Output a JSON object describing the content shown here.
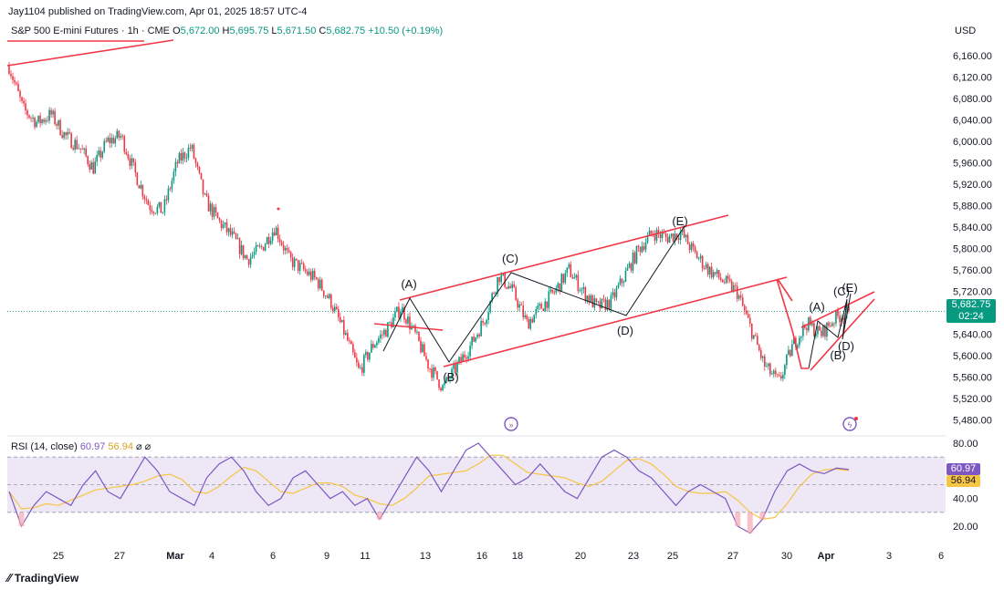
{
  "header": {
    "publisher_line": "Jay1104 published on TradingView.com, Apr 01, 2025 18:57 UTC-4"
  },
  "legend": {
    "symbol": "S&P 500 E-mini Futures · 1h · CME",
    "open_label": "O",
    "open": "5,672.00",
    "high_label": "H",
    "high": "5,695.75",
    "low_label": "L",
    "low": "5,671.50",
    "close_label": "C",
    "close": "5,682.75",
    "change": "+10.50 (+0.19%)"
  },
  "price_axis": {
    "currency": "USD",
    "ticks": [
      "6,160.00",
      "6,120.00",
      "6,080.00",
      "6,040.00",
      "6,000.00",
      "5,960.00",
      "5,920.00",
      "5,880.00",
      "5,840.00",
      "5,800.00",
      "5,760.00",
      "5,720.00",
      "5,640.00",
      "5,600.00",
      "5,560.00",
      "5,520.00",
      "5,480.00"
    ]
  },
  "last_price": {
    "value": "5,682.75",
    "countdown": "02:24"
  },
  "rsi": {
    "legend": "RSI (14, close)",
    "rsi_value": "60.97",
    "ma_value": "56.94",
    "icons": "⌀ ⌀",
    "ticks": [
      "80.00",
      "40.00",
      "20.00"
    ],
    "upper_band": 70,
    "mid_band": 50,
    "lower_band": 30
  },
  "time_axis": {
    "labels": [
      "25",
      "27",
      "Mar",
      "4",
      "6",
      "9",
      "11",
      "13",
      "16",
      "18",
      "20",
      "23",
      "25",
      "27",
      "30",
      "Apr",
      "3",
      "6"
    ]
  },
  "footer": {
    "brand": "TradingView"
  },
  "colors": {
    "up": "#089981",
    "down": "#f23645",
    "trendline": "#f23645",
    "wave": "#131722",
    "rsi": "#7e57c2",
    "rsi_ma": "#f6c544",
    "band": "#ede7f6"
  },
  "chart_data": {
    "type": "candlestick",
    "title": "S&P 500 E-mini Futures · 1h · CME",
    "ylabel": "USD",
    "ylim": [
      5450,
      6200
    ],
    "price_path": [
      {
        "t": "Feb 21",
        "price": 6140
      },
      {
        "t": "Feb 21",
        "price": 6060
      },
      {
        "t": "Feb 21",
        "price": 6035
      },
      {
        "t": "Feb 24",
        "price": 6050
      },
      {
        "t": "Feb 24",
        "price": 6010
      },
      {
        "t": "Feb 25",
        "price": 5990
      },
      {
        "t": "Feb 25",
        "price": 5950
      },
      {
        "t": "Feb 26",
        "price": 6000
      },
      {
        "t": "Feb 27",
        "price": 6010
      },
      {
        "t": "Feb 27",
        "price": 5940
      },
      {
        "t": "Feb 28",
        "price": 5880
      },
      {
        "t": "Feb 28",
        "price": 5870
      },
      {
        "t": "Mar 3",
        "price": 5960
      },
      {
        "t": "Mar 3",
        "price": 5990
      },
      {
        "t": "Mar 4",
        "price": 5890
      },
      {
        "t": "Mar 4",
        "price": 5850
      },
      {
        "t": "Mar 5",
        "price": 5820
      },
      {
        "t": "Mar 5",
        "price": 5780
      },
      {
        "t": "Mar 6",
        "price": 5800
      },
      {
        "t": "Mar 6",
        "price": 5840
      },
      {
        "t": "Mar 7",
        "price": 5780
      },
      {
        "t": "Mar 7",
        "price": 5760
      },
      {
        "t": "Mar 10",
        "price": 5740
      },
      {
        "t": "Mar 10",
        "price": 5700
      },
      {
        "t": "Mar 11",
        "price": 5640
      },
      {
        "t": "Mar 11",
        "price": 5570
      },
      {
        "t": "Mar 11",
        "price": 5620
      },
      {
        "t": "Mar 12",
        "price": 5650
      },
      {
        "t": "Mar 12",
        "price": 5690
      },
      {
        "t": "Mar 13",
        "price": 5640
      },
      {
        "t": "Mar 13",
        "price": 5580
      },
      {
        "t": "Mar 14",
        "price": 5540
      },
      {
        "t": "Mar 14",
        "price": 5580
      },
      {
        "t": "Mar 17",
        "price": 5620
      },
      {
        "t": "Mar 17",
        "price": 5670
      },
      {
        "t": "Mar 18",
        "price": 5750
      },
      {
        "t": "Mar 18",
        "price": 5720
      },
      {
        "t": "Mar 19",
        "price": 5660
      },
      {
        "t": "Mar 19",
        "price": 5690
      },
      {
        "t": "Mar 20",
        "price": 5720
      },
      {
        "t": "Mar 20",
        "price": 5760
      },
      {
        "t": "Mar 21",
        "price": 5720
      },
      {
        "t": "Mar 21",
        "price": 5690
      },
      {
        "t": "Mar 24",
        "price": 5700
      },
      {
        "t": "Mar 24",
        "price": 5750
      },
      {
        "t": "Mar 25",
        "price": 5800
      },
      {
        "t": "Mar 25",
        "price": 5830
      },
      {
        "t": "Mar 26",
        "price": 5820
      },
      {
        "t": "Mar 26",
        "price": 5830
      },
      {
        "t": "Mar 27",
        "price": 5790
      },
      {
        "t": "Mar 27",
        "price": 5760
      },
      {
        "t": "Mar 28",
        "price": 5740
      },
      {
        "t": "Mar 28",
        "price": 5720
      },
      {
        "t": "Mar 28",
        "price": 5650
      },
      {
        "t": "Mar 30",
        "price": 5580
      },
      {
        "t": "Mar 31",
        "price": 5550
      },
      {
        "t": "Mar 31",
        "price": 5620
      },
      {
        "t": "Mar 31",
        "price": 5660
      },
      {
        "t": "Apr 1",
        "price": 5640
      },
      {
        "t": "Apr 1",
        "price": 5670
      },
      {
        "t": "Apr 1",
        "price": 5682.75
      }
    ],
    "wave_labels": [
      {
        "label": "(A)",
        "t": "Mar 12",
        "price": 5700
      },
      {
        "label": "(B)",
        "t": "Mar 14",
        "price": 5570
      },
      {
        "label": "(C)",
        "t": "Mar 17",
        "price": 5750
      },
      {
        "label": "(D)",
        "t": "Mar 22",
        "price": 5670
      },
      {
        "label": "(E)",
        "t": "Mar 25",
        "price": 5840
      },
      {
        "label": "(A)",
        "t": "Mar 31",
        "price": 5660
      },
      {
        "label": "(B)",
        "t": "Mar 31",
        "price": 5620
      },
      {
        "label": "(C)",
        "t": "Apr 1",
        "price": 5690
      },
      {
        "label": "(D)",
        "t": "Apr 1",
        "price": 5640
      },
      {
        "label": "(E)",
        "t": "Apr 1",
        "price": 5700
      }
    ],
    "rsi": {
      "ylim": [
        10,
        85
      ],
      "values": [
        45,
        20,
        35,
        45,
        40,
        35,
        50,
        60,
        45,
        40,
        55,
        70,
        60,
        45,
        40,
        35,
        55,
        65,
        70,
        60,
        45,
        35,
        40,
        55,
        60,
        50,
        40,
        45,
        35,
        40,
        25,
        40,
        55,
        70,
        60,
        45,
        60,
        75,
        80,
        70,
        60,
        50,
        55,
        65,
        55,
        45,
        40,
        55,
        70,
        75,
        70,
        60,
        55,
        45,
        35,
        45,
        50,
        45,
        40,
        20,
        15,
        25,
        45,
        60,
        65,
        60,
        58,
        62,
        60.97
      ]
    }
  }
}
